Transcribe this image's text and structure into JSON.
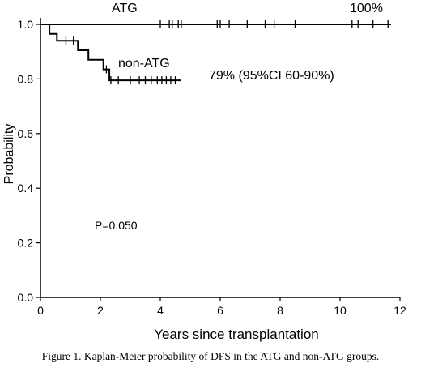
{
  "chart_data": {
    "type": "line",
    "title": "",
    "xlabel": "Years since transplantation",
    "ylabel": "Probability",
    "xlim": [
      0,
      12
    ],
    "ylim": [
      0,
      1.0
    ],
    "x_ticks": [
      "0",
      "2",
      "4",
      "6",
      "8",
      "10",
      "12"
    ],
    "y_ticks": [
      "0.0",
      "0.2",
      "0.4",
      "0.6",
      "0.8",
      "1.0"
    ],
    "grid": false,
    "series": [
      {
        "name": "ATG",
        "step": [
          [
            0,
            1.0
          ],
          [
            11.7,
            1.0
          ]
        ],
        "censor_x": [
          4.0,
          4.3,
          4.4,
          4.6,
          4.7,
          5.9,
          6.0,
          6.3,
          6.9,
          7.5,
          7.8,
          8.5,
          10.4,
          10.6,
          11.1,
          11.6
        ]
      },
      {
        "name": "non-ATG",
        "step": [
          [
            0,
            1.0
          ],
          [
            0.3,
            1.0
          ],
          [
            0.3,
            0.965
          ],
          [
            0.55,
            0.965
          ],
          [
            0.55,
            0.94
          ],
          [
            1.25,
            0.94
          ],
          [
            1.25,
            0.905
          ],
          [
            1.6,
            0.905
          ],
          [
            1.6,
            0.87
          ],
          [
            2.1,
            0.87
          ],
          [
            2.1,
            0.835
          ],
          [
            2.3,
            0.835
          ],
          [
            2.3,
            0.795
          ],
          [
            4.7,
            0.795
          ]
        ],
        "censor": [
          [
            0.85,
            0.94
          ],
          [
            1.1,
            0.94
          ],
          [
            2.2,
            0.835
          ],
          [
            2.35,
            0.795
          ],
          [
            2.6,
            0.795
          ],
          [
            3.0,
            0.795
          ],
          [
            3.3,
            0.795
          ],
          [
            3.5,
            0.795
          ],
          [
            3.7,
            0.795
          ],
          [
            3.9,
            0.795
          ],
          [
            4.05,
            0.795
          ],
          [
            4.2,
            0.795
          ],
          [
            4.35,
            0.795
          ],
          [
            4.5,
            0.795
          ]
        ]
      }
    ],
    "annotations": {
      "atg_label": "ATG",
      "atg_pct": "100%",
      "nonatg_label": "non-ATG",
      "nonatg_pct": "79% (95%CI 60-90%)",
      "pvalue": "P=0.050"
    }
  },
  "caption": "Figure 1. Kaplan-Meier probability of DFS in the ATG and non-ATG groups."
}
